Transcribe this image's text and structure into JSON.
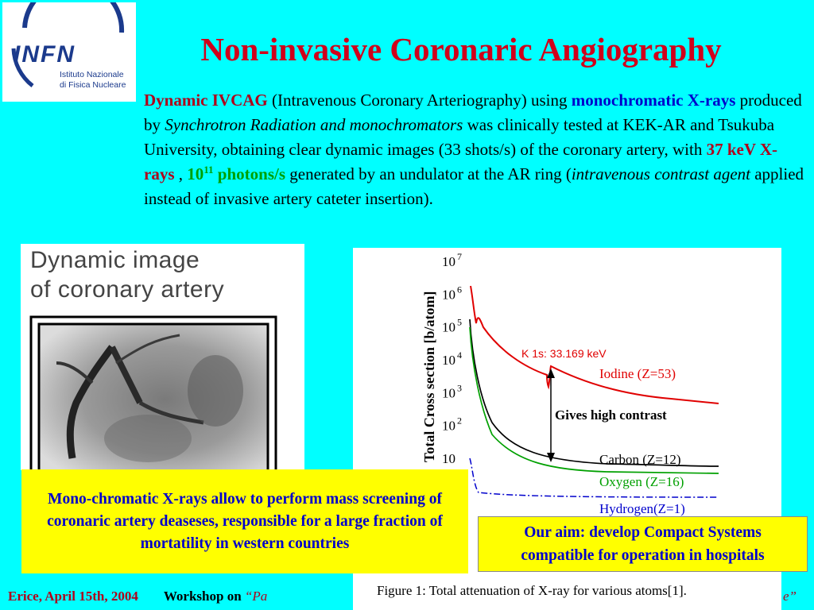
{
  "header": {
    "logo_text": "INFN",
    "logo_sub_line1": "Istituto Nazionale",
    "logo_sub_line2": "di Fisica Nucleare",
    "title": "Non-invasive Coronaric Angiography"
  },
  "intro": {
    "part1": "Dynamic IVCAG",
    "part2": " (Intravenous Coronary Arteriography) using ",
    "part3": "monochromatic X-rays",
    "part4": " produced by ",
    "part5": "Synchrotron Radiation and monochromators",
    "part6": " was clinically tested at KEK-AR and Tsukuba University, obtaining clear dynamic images (33 shots/s) of the coronary artery, with  ",
    "energy": "37 keV X-rays",
    "part7": " ,  ",
    "flux_base": "10",
    "flux_exp": "11",
    "flux_unit": " photons/s",
    "part8": " generated by an undulator at the AR ring (",
    "part9": "intravenous contrast agent",
    "part10": " applied instead of invasive artery cateter insertion)."
  },
  "angio_image": {
    "caption_line1": "Dynamic image",
    "caption_line2": "of coronary artery"
  },
  "chart_data": {
    "type": "line",
    "ylabel": "Total Cross section [b/atom]",
    "yscale": "log",
    "yticks": [
      "10",
      "10 2",
      "10 3",
      "10 4",
      "10 5",
      "10 6",
      "10 7"
    ],
    "ylim": [
      1,
      10000000
    ],
    "figure_caption": "Figure 1: Total attenuation of X-ray for various atoms[1].",
    "annotation_edge": "K 1s: 33.169 keV",
    "annotation_contrast": "Gives high contrast",
    "series": [
      {
        "name": "Iodine (Z=53)",
        "color": "#e00000"
      },
      {
        "name": "Carbon (Z=12)",
        "color": "#000000"
      },
      {
        "name": "Oxygen (Z=16)",
        "color": "#00a000"
      },
      {
        "name": "Hydrogen(Z=1)",
        "color": "#0000cc"
      }
    ]
  },
  "boxes": {
    "screening": "Mono-chromatic X-rays allow to perform mass screening of coronaric artery deaseses, responsible for a large fraction of mortatility in western countries",
    "aim_line1": "Our aim: develop Compact Systems",
    "aim_line2": "compatible for operation in hospitals"
  },
  "footer": {
    "place_date": "Erice,  April 15th, 2004",
    "workshop_label": "Workshop on",
    "workshop_title": "“Pa",
    "workshop_end": "e”"
  },
  "colors": {
    "background": "#00ffff",
    "title_red": "#d0001a",
    "highlight_blue": "#0000cc",
    "highlight_green": "#00a000",
    "box_yellow": "#ffff00"
  }
}
